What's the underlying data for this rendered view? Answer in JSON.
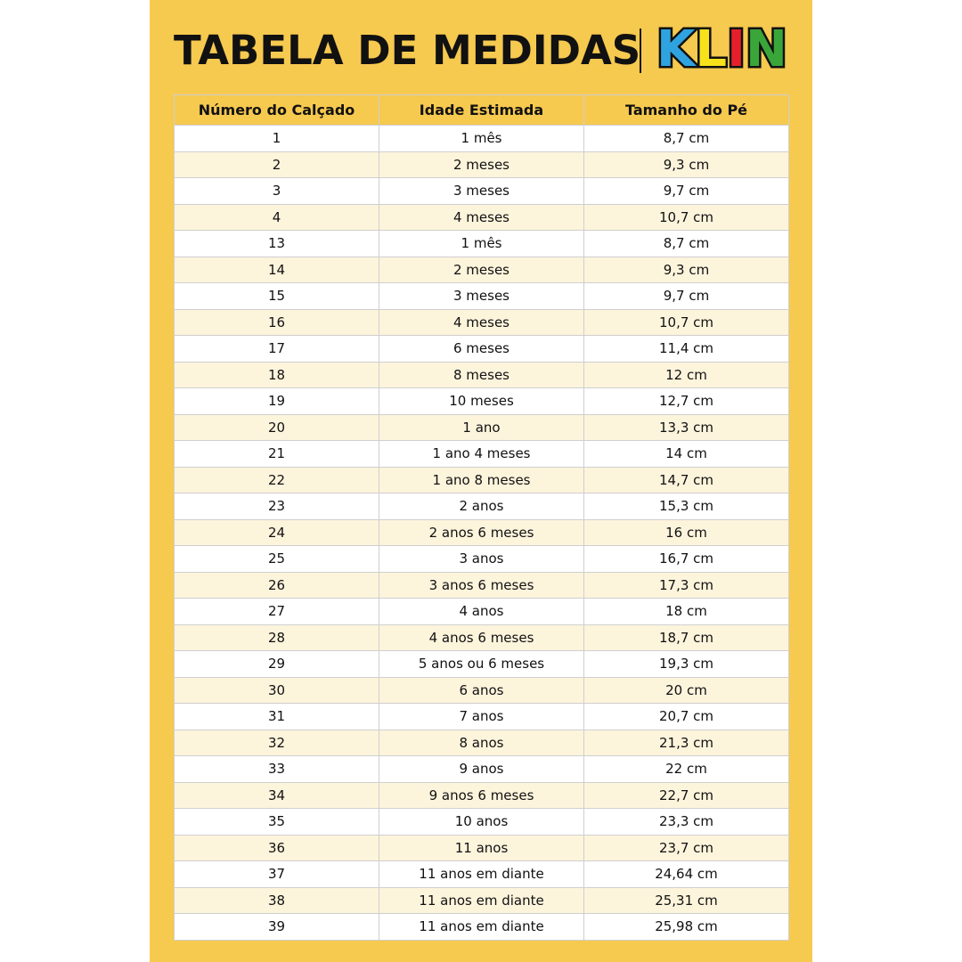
{
  "title": "TABELA DE MEDIDAS",
  "logo": {
    "letters": [
      "K",
      "L",
      "I",
      "N"
    ],
    "colors": [
      "#2fa3e0",
      "#f7e11a",
      "#e5202a",
      "#3aa63a"
    ],
    "text": "KLIN"
  },
  "table": {
    "headers": [
      "Número do Calçado",
      "Idade Estimada",
      "Tamanho do Pé"
    ],
    "rows": [
      [
        "1",
        "1 mês",
        "8,7 cm"
      ],
      [
        "2",
        "2 meses",
        "9,3 cm"
      ],
      [
        "3",
        "3 meses",
        "9,7 cm"
      ],
      [
        "4",
        "4 meses",
        "10,7 cm"
      ],
      [
        "13",
        "1 mês",
        "8,7 cm"
      ],
      [
        "14",
        "2 meses",
        "9,3 cm"
      ],
      [
        "15",
        "3 meses",
        "9,7 cm"
      ],
      [
        "16",
        "4 meses",
        "10,7 cm"
      ],
      [
        "17",
        "6 meses",
        "11,4 cm"
      ],
      [
        "18",
        "8 meses",
        "12 cm"
      ],
      [
        "19",
        "10 meses",
        "12,7 cm"
      ],
      [
        "20",
        "1 ano",
        "13,3 cm"
      ],
      [
        "21",
        "1 ano 4 meses",
        "14 cm"
      ],
      [
        "22",
        "1 ano 8 meses",
        "14,7 cm"
      ],
      [
        "23",
        "2 anos",
        "15,3 cm"
      ],
      [
        "24",
        "2 anos 6 meses",
        "16 cm"
      ],
      [
        "25",
        "3 anos",
        "16,7 cm"
      ],
      [
        "26",
        "3 anos 6 meses",
        "17,3 cm"
      ],
      [
        "27",
        "4 anos",
        "18 cm"
      ],
      [
        "28",
        "4 anos 6 meses",
        "18,7 cm"
      ],
      [
        "29",
        "5 anos ou 6 meses",
        "19,3 cm"
      ],
      [
        "30",
        "6 anos",
        "20 cm"
      ],
      [
        "31",
        "7 anos",
        "20,7 cm"
      ],
      [
        "32",
        "8 anos",
        "21,3 cm"
      ],
      [
        "33",
        "9 anos",
        "22 cm"
      ],
      [
        "34",
        "9 anos 6 meses",
        "22,7 cm"
      ],
      [
        "35",
        "10 anos",
        "23,3 cm"
      ],
      [
        "36",
        "11 anos",
        "23,7 cm"
      ],
      [
        "37",
        "11 anos em diante",
        "24,64 cm"
      ],
      [
        "38",
        "11 anos em diante",
        "25,31 cm"
      ],
      [
        "39",
        "11 anos em diante",
        "25,98 cm"
      ]
    ]
  }
}
